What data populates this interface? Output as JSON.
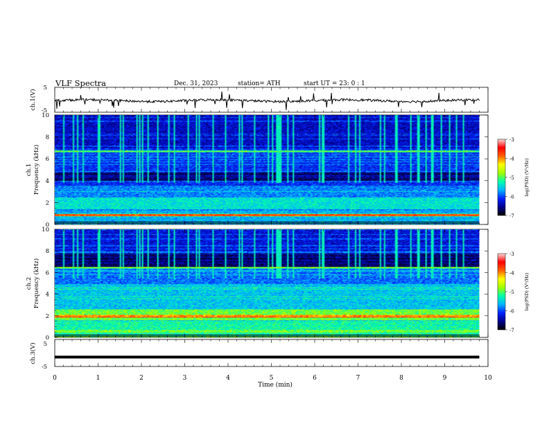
{
  "header": {
    "title": "VLF  Spectra",
    "date": "Dec. 31,  2023",
    "station": "station= ATH",
    "start_ut": "start  UT  =    23: 0   : 1"
  },
  "chart_data": [
    {
      "type": "line",
      "panel": "ch1-waveform",
      "ylabel": "ch.1(V)",
      "yticks": [
        "5",
        "-5"
      ],
      "ylim": [
        -5,
        5
      ],
      "series": [
        {
          "color": "#000000"
        }
      ]
    },
    {
      "type": "heatmap",
      "panel": "ch1-spectrogram",
      "ylabel": "ch.1\nFrequency  (kHz)",
      "yticks": [
        "10",
        "8",
        "6",
        "4",
        "2",
        "0"
      ],
      "ylim": [
        0,
        10
      ],
      "colorbar": {
        "label": "log(PSD) (V²/Hz)",
        "ticks": [
          "-3",
          "-4",
          "-5",
          "-6",
          "-7"
        ],
        "range": [
          -7,
          -3
        ]
      }
    },
    {
      "type": "heatmap",
      "panel": "ch2-spectrogram",
      "ylabel": "ch.2\nFrequency  (kHz)",
      "yticks": [
        "10",
        "8",
        "6",
        "4",
        "2",
        "0"
      ],
      "ylim": [
        0,
        10
      ],
      "colorbar": {
        "label": "log(PSD) (V²/Hz)",
        "ticks": [
          "-3",
          "-4",
          "-5",
          "-6",
          "-7"
        ],
        "range": [
          -7,
          -3
        ]
      }
    },
    {
      "type": "line",
      "panel": "ch3-waveform",
      "ylabel": "ch.3(V)",
      "yticks": [
        "5",
        "-5"
      ],
      "ylim": [
        -5,
        5
      ],
      "series": [
        {
          "color": "#000000",
          "y_constant": -1.5
        }
      ]
    }
  ],
  "x_axis": {
    "label": "Time  (min)",
    "ticks": [
      "0",
      "1",
      "2",
      "3",
      "4",
      "5",
      "6",
      "7",
      "8",
      "9",
      "10"
    ],
    "xlim": [
      0,
      10
    ],
    "data_end": 9.8
  },
  "colorscale": [
    "#000000",
    "#00008b",
    "#0022ff",
    "#00b4ff",
    "#00ffaa",
    "#a0ff00",
    "#ffff00",
    "#ff6000",
    "#ff0000",
    "#ffd8d8"
  ]
}
